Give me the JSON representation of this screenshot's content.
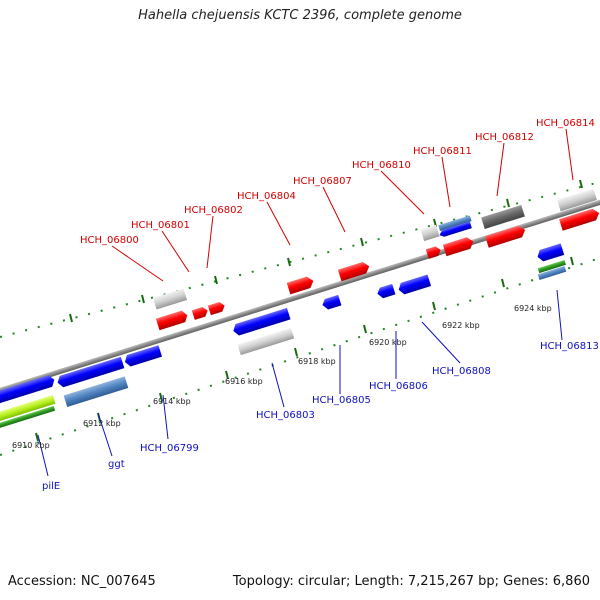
{
  "title": "Hahella chejuensis KCTC 2396, complete genome",
  "footer": {
    "accession": "Accession: NC_007645",
    "summary": "Topology: circular; Length: 7,215,267 bp; Genes: 6,860"
  },
  "scale_labels": [
    "6910 kbp",
    "6912 kbp",
    "6914 kbp",
    "6916 kbp",
    "6918 kbp",
    "6920 kbp",
    "6922 kbp",
    "6924 kbp"
  ],
  "top_genes": [
    "HCH_06800",
    "HCH_06801",
    "HCH_06802",
    "HCH_06804",
    "HCH_06807",
    "HCH_06810",
    "HCH_06811",
    "HCH_06812",
    "HCH_06814"
  ],
  "bottom_genes": [
    "pilE",
    "ggt",
    "HCH_06799",
    "HCH_06803",
    "HCH_06805",
    "HCH_06806",
    "HCH_06808",
    "HCH_06813"
  ],
  "colors": {
    "forward": "#ff0000",
    "reverse": "#0000ff",
    "pseudo": "#c8c8c8",
    "rna": "#55aa22",
    "backbone": "#888888",
    "tick": "#228822"
  }
}
